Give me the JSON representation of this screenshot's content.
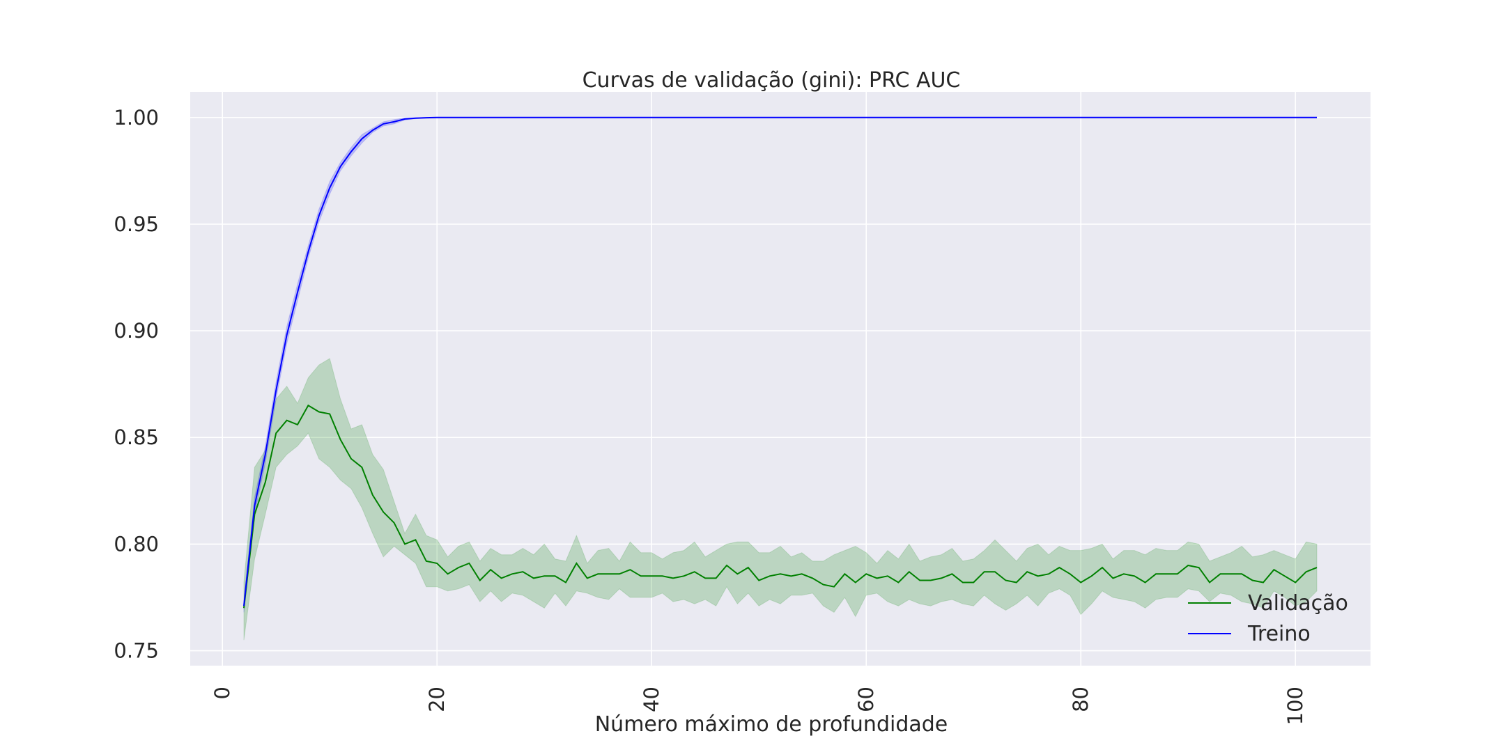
{
  "chart_data": {
    "type": "line",
    "title": "Curvas de validação (gini): PRC AUC",
    "xlabel": "Número máximo de profundidade",
    "ylabel": "",
    "xlim": [
      -3,
      107
    ],
    "ylim": [
      0.743,
      1.012
    ],
    "xticks": [
      0,
      20,
      40,
      60,
      80,
      100
    ],
    "yticks": [
      0.75,
      0.8,
      0.85,
      0.9,
      0.95,
      1.0
    ],
    "xtick_labels": [
      "0",
      "20",
      "40",
      "60",
      "80",
      "100"
    ],
    "ytick_labels": [
      "0.75",
      "0.80",
      "0.85",
      "0.90",
      "0.95",
      "1.00"
    ],
    "grid": true,
    "legend_position": "lower-right",
    "colors": {
      "background": "#EAEAF2",
      "grid": "#FFFFFF",
      "validation": "#008000",
      "train": "#0000FF"
    },
    "x": [
      2,
      3,
      4,
      5,
      6,
      7,
      8,
      9,
      10,
      11,
      12,
      13,
      14,
      15,
      16,
      17,
      18,
      19,
      20,
      21,
      22,
      23,
      24,
      25,
      26,
      27,
      28,
      29,
      30,
      31,
      32,
      33,
      34,
      35,
      36,
      37,
      38,
      39,
      40,
      41,
      42,
      43,
      44,
      45,
      46,
      47,
      48,
      49,
      50,
      51,
      52,
      53,
      54,
      55,
      56,
      57,
      58,
      59,
      60,
      61,
      62,
      63,
      64,
      65,
      66,
      67,
      68,
      69,
      70,
      71,
      72,
      73,
      74,
      75,
      76,
      77,
      78,
      79,
      80,
      81,
      82,
      83,
      84,
      85,
      86,
      87,
      88,
      89,
      90,
      91,
      92,
      93,
      94,
      95,
      96,
      97,
      98,
      99,
      100,
      101,
      102
    ],
    "series": [
      {
        "name": "Validação",
        "color": "#008000",
        "values": [
          0.77,
          0.814,
          0.829,
          0.852,
          0.858,
          0.856,
          0.865,
          0.862,
          0.861,
          0.849,
          0.84,
          0.836,
          0.823,
          0.815,
          0.81,
          0.8,
          0.802,
          0.792,
          0.791,
          0.786,
          0.789,
          0.791,
          0.783,
          0.788,
          0.784,
          0.786,
          0.787,
          0.784,
          0.785,
          0.785,
          0.782,
          0.791,
          0.784,
          0.786,
          0.786,
          0.786,
          0.788,
          0.785,
          0.785,
          0.785,
          0.784,
          0.785,
          0.787,
          0.784,
          0.784,
          0.79,
          0.786,
          0.789,
          0.783,
          0.785,
          0.786,
          0.785,
          0.786,
          0.784,
          0.781,
          0.78,
          0.786,
          0.782,
          0.786,
          0.784,
          0.785,
          0.782,
          0.787,
          0.783,
          0.783,
          0.784,
          0.786,
          0.782,
          0.782,
          0.787,
          0.787,
          0.783,
          0.782,
          0.787,
          0.785,
          0.786,
          0.789,
          0.786,
          0.782,
          0.785,
          0.789,
          0.784,
          0.786,
          0.785,
          0.782,
          0.786,
          0.786,
          0.786,
          0.79,
          0.789,
          0.782,
          0.786,
          0.786,
          0.786,
          0.783,
          0.782,
          0.788,
          0.785,
          0.782,
          0.787,
          0.789
        ],
        "upper": [
          0.782,
          0.836,
          0.844,
          0.868,
          0.874,
          0.866,
          0.878,
          0.884,
          0.887,
          0.868,
          0.854,
          0.856,
          0.842,
          0.835,
          0.82,
          0.805,
          0.814,
          0.804,
          0.802,
          0.794,
          0.799,
          0.801,
          0.792,
          0.798,
          0.795,
          0.795,
          0.798,
          0.795,
          0.8,
          0.793,
          0.792,
          0.804,
          0.791,
          0.797,
          0.798,
          0.792,
          0.801,
          0.796,
          0.796,
          0.793,
          0.796,
          0.797,
          0.801,
          0.794,
          0.797,
          0.8,
          0.801,
          0.801,
          0.796,
          0.796,
          0.799,
          0.794,
          0.796,
          0.792,
          0.792,
          0.795,
          0.797,
          0.799,
          0.796,
          0.791,
          0.797,
          0.793,
          0.8,
          0.792,
          0.794,
          0.795,
          0.798,
          0.792,
          0.793,
          0.797,
          0.802,
          0.797,
          0.792,
          0.798,
          0.8,
          0.795,
          0.799,
          0.797,
          0.797,
          0.798,
          0.8,
          0.793,
          0.797,
          0.797,
          0.795,
          0.798,
          0.797,
          0.797,
          0.801,
          0.8,
          0.792,
          0.794,
          0.796,
          0.799,
          0.794,
          0.795,
          0.797,
          0.795,
          0.793,
          0.801,
          0.8
        ],
        "lower": [
          0.755,
          0.793,
          0.814,
          0.836,
          0.842,
          0.846,
          0.852,
          0.84,
          0.836,
          0.83,
          0.826,
          0.817,
          0.805,
          0.794,
          0.799,
          0.795,
          0.791,
          0.78,
          0.78,
          0.778,
          0.779,
          0.781,
          0.773,
          0.778,
          0.773,
          0.777,
          0.776,
          0.773,
          0.77,
          0.777,
          0.771,
          0.778,
          0.777,
          0.775,
          0.774,
          0.779,
          0.775,
          0.775,
          0.775,
          0.777,
          0.773,
          0.774,
          0.772,
          0.774,
          0.771,
          0.78,
          0.772,
          0.777,
          0.771,
          0.774,
          0.772,
          0.776,
          0.776,
          0.777,
          0.771,
          0.768,
          0.775,
          0.766,
          0.776,
          0.777,
          0.773,
          0.771,
          0.774,
          0.772,
          0.771,
          0.773,
          0.774,
          0.772,
          0.771,
          0.776,
          0.772,
          0.769,
          0.772,
          0.776,
          0.771,
          0.777,
          0.779,
          0.776,
          0.767,
          0.772,
          0.778,
          0.775,
          0.774,
          0.773,
          0.77,
          0.774,
          0.775,
          0.775,
          0.779,
          0.778,
          0.773,
          0.777,
          0.776,
          0.773,
          0.772,
          0.77,
          0.778,
          0.775,
          0.771,
          0.773,
          0.778
        ]
      },
      {
        "name": "Treino",
        "color": "#0000FF",
        "values": [
          0.771,
          0.818,
          0.842,
          0.872,
          0.898,
          0.918,
          0.937,
          0.954,
          0.967,
          0.977,
          0.984,
          0.99,
          0.994,
          0.997,
          0.998,
          0.9993,
          0.9997,
          0.9999,
          1.0,
          1.0,
          1.0,
          1.0,
          1.0,
          1.0,
          1.0,
          1.0,
          1.0,
          1.0,
          1.0,
          1.0,
          1.0,
          1.0,
          1.0,
          1.0,
          1.0,
          1.0,
          1.0,
          1.0,
          1.0,
          1.0,
          1.0,
          1.0,
          1.0,
          1.0,
          1.0,
          1.0,
          1.0,
          1.0,
          1.0,
          1.0,
          1.0,
          1.0,
          1.0,
          1.0,
          1.0,
          1.0,
          1.0,
          1.0,
          1.0,
          1.0,
          1.0,
          1.0,
          1.0,
          1.0,
          1.0,
          1.0,
          1.0,
          1.0,
          1.0,
          1.0,
          1.0,
          1.0,
          1.0,
          1.0,
          1.0,
          1.0,
          1.0,
          1.0,
          1.0,
          1.0,
          1.0,
          1.0,
          1.0,
          1.0,
          1.0,
          1.0,
          1.0,
          1.0,
          1.0,
          1.0,
          1.0,
          1.0,
          1.0,
          1.0,
          1.0,
          1.0,
          1.0,
          1.0,
          1.0,
          1.0,
          1.0
        ],
        "band": [
          0.003,
          0.004,
          0.004,
          0.004,
          0.004,
          0.004,
          0.003,
          0.003,
          0.003,
          0.002,
          0.002,
          0.002,
          0.001,
          0.001,
          0.001,
          0.0005,
          0.0003,
          0.0001,
          0,
          0,
          0,
          0,
          0,
          0,
          0,
          0,
          0,
          0,
          0,
          0,
          0,
          0,
          0,
          0,
          0,
          0,
          0,
          0,
          0,
          0,
          0,
          0,
          0,
          0,
          0,
          0,
          0,
          0,
          0,
          0,
          0,
          0,
          0,
          0,
          0,
          0,
          0,
          0,
          0,
          0,
          0,
          0,
          0,
          0,
          0,
          0,
          0,
          0,
          0,
          0,
          0,
          0,
          0,
          0,
          0,
          0,
          0,
          0,
          0,
          0,
          0,
          0,
          0,
          0,
          0,
          0,
          0,
          0,
          0,
          0,
          0,
          0,
          0,
          0,
          0,
          0,
          0,
          0,
          0,
          0,
          0
        ]
      }
    ]
  }
}
